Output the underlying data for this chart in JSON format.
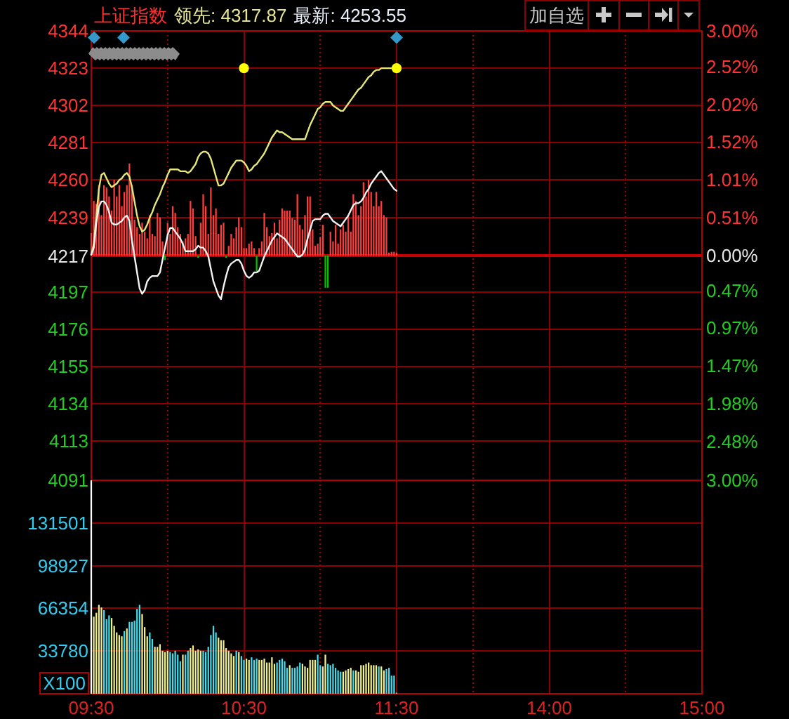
{
  "chart_data": [
    {
      "type": "line",
      "title": "上证指数",
      "annotations": [
        "领先: 4317.87",
        "最新: 4253.55",
        "加自选"
      ],
      "categories": [
        null,
        null,
        null,
        null,
        null,
        null,
        null,
        null,
        null,
        null,
        null,
        null,
        null,
        null,
        null,
        null,
        null,
        null,
        null,
        null,
        null,
        null,
        null,
        null,
        null,
        null,
        null,
        null,
        null,
        null,
        null,
        null,
        null,
        null,
        null,
        null,
        null,
        null,
        null,
        null,
        null,
        null,
        null,
        null,
        null,
        null,
        null,
        null,
        null,
        null,
        null,
        null,
        null,
        null,
        null,
        null,
        null,
        null,
        null,
        null,
        null,
        null,
        null,
        null,
        null,
        null,
        null,
        null,
        null,
        null,
        null,
        null,
        null,
        null,
        null,
        null,
        null,
        null,
        null,
        null,
        null,
        null,
        null,
        null,
        null,
        null,
        null,
        null,
        null,
        null,
        null,
        null,
        null,
        null,
        null,
        null,
        null,
        null,
        null,
        null,
        null,
        null,
        null,
        null,
        null,
        null,
        null,
        null,
        null,
        null,
        null,
        null,
        null,
        null,
        null,
        null,
        null,
        null,
        null,
        null,
        null,
        null,
        null,
        null,
        null,
        null,
        null,
        null,
        null,
        null,
        null,
        null,
        null,
        null,
        null,
        null,
        null,
        null,
        null,
        null,
        null,
        null,
        null,
        null,
        null,
        null,
        null,
        null,
        null,
        null,
        null,
        null,
        null,
        null,
        null,
        null,
        null,
        null,
        null,
        null,
        null,
        null,
        null,
        null,
        null,
        null,
        null,
        null,
        null,
        null,
        null,
        null,
        null,
        null,
        null,
        null,
        null,
        null,
        null,
        null,
        null,
        null,
        null,
        null,
        null,
        null,
        null,
        null,
        null,
        null,
        null,
        null,
        null,
        null,
        null,
        null,
        null,
        null,
        null,
        null,
        null,
        null,
        null,
        null,
        null,
        null,
        null,
        null,
        null,
        null,
        null,
        null,
        null,
        null,
        null,
        null,
        null,
        null,
        null,
        null,
        null,
        null,
        null,
        null,
        null,
        null,
        null,
        null,
        null,
        null,
        null,
        null,
        null,
        null,
        null,
        null,
        null,
        null,
        null,
        null,
        null
      ],
      "ylim": [
        4091,
        4344
      ],
      "yticks": [
        4344,
        4323,
        4302,
        4281,
        4260,
        4239,
        4217,
        4197,
        4176,
        4155,
        4134,
        4113,
        4091
      ],
      "y2lim": [
        -3,
        3
      ],
      "y2ticks": [
        {
          "value": 3,
          "label": "3.00%"
        },
        {
          "value": 2.52,
          "label": "2.52%"
        },
        {
          "value": 2.02,
          "label": "2.02%"
        },
        {
          "value": 1.52,
          "label": "1.52%"
        },
        {
          "value": 1.01,
          "label": "1.01%"
        },
        {
          "value": 0.51,
          "label": "0.51%"
        },
        {
          "value": 0,
          "label": "0.00%"
        },
        {
          "value": -0.47,
          "label": "0.47%"
        },
        {
          "value": -0.97,
          "label": "0.97%"
        },
        {
          "value": -1.47,
          "label": "1.47%"
        },
        {
          "value": -1.98,
          "label": "1.98%"
        },
        {
          "value": -2.48,
          "label": "2.48%"
        },
        {
          "value": -3,
          "label": "3.00%"
        }
      ],
      "tick_labels": "y",
      "grid": true,
      "ref_lines": [
        {
          "axis": "y2",
          "value": 0,
          "color": "#c80000"
        }
      ],
      "series": [
        {
          "type": "bar",
          "axis": "y2",
          "values": [
            0.3,
            0.73,
            0.69,
            0.94,
            0.54,
            0.94,
            0.91,
            0.79,
            0.6,
            1.01,
            0.79,
            0.94,
            0.66,
            0.85,
            0.94,
            1.23,
            0.94,
            0.48,
            0.38,
            0.29,
            0.44,
            0.32,
            0.23,
            0.54,
            0.29,
            0.26,
            0.57,
            0.51,
            0.19,
            -0.06,
            0.44,
            0.29,
            0.66,
            0.57,
            0.38,
            0.29,
            0.19,
            0.23,
            0.29,
            0.73,
            0.63,
            0.26,
            -0.03,
            0.44,
            0.82,
            0.66,
            0.29,
            0.91,
            0.54,
            0.63,
            0.29,
            0.41,
            0.44,
            -0.03,
            0.13,
            0.29,
            0.23,
            0.38,
            0.51,
            0.38,
            0.1,
            0.1,
            0.16,
            0.19,
            0.1,
            -0.21,
            0.1,
            0.19,
            0.57,
            0.38,
            0.26,
            0.3,
            0.44,
            0.23,
            0.48,
            0.63,
            0.6,
            0.6,
            0.6,
            0.5,
            0.48,
            0.82,
            0.41,
            0.35,
            0.54,
            0.79,
            0.79,
            0.35,
            0.13,
            0.16,
            0.25,
            0.41,
            -0.43,
            -0.43,
            0.32,
            0.19,
            0.41,
            0.16,
            0.35,
            0.41,
            0.32,
            0.54,
            0.32,
            0.82,
            0.73,
            0.54,
            0.66,
            0.98,
            0.79,
            1.01,
            0.85,
            0.66,
            0.85,
            0.66,
            0.73,
            0.54,
            0.51,
            0.04,
            0.05,
            0.05,
            0.04,
            null,
            null,
            null,
            null,
            null,
            null,
            null,
            null,
            null,
            null,
            null,
            null,
            null,
            null,
            null,
            null,
            null,
            null,
            null,
            null,
            null,
            null,
            null,
            null,
            null,
            null,
            null,
            null,
            null,
            null,
            null,
            null,
            null,
            null,
            null,
            null,
            null,
            null,
            null,
            null,
            null,
            null,
            null,
            null,
            null,
            null,
            null,
            null,
            null,
            null,
            null,
            null,
            null,
            null,
            null,
            null,
            null,
            null,
            null,
            null,
            null,
            null,
            null,
            null,
            null,
            null,
            null,
            null,
            null,
            null,
            null,
            null,
            null,
            null,
            null,
            null,
            null,
            null,
            null,
            null,
            null,
            null,
            null,
            null,
            null,
            null,
            null,
            null,
            null,
            null,
            null,
            null,
            null,
            null,
            null,
            null,
            null,
            null,
            null,
            null,
            null,
            null,
            null,
            null,
            null,
            null,
            null,
            null,
            null,
            null,
            null,
            null,
            null,
            null,
            null,
            null,
            null,
            null,
            null,
            null
          ],
          "colors": [
            "#ff3c3c",
            "#ff3c3c",
            "#ff3c3c",
            "#ff3c3c",
            "#ff3c3c",
            "#ff3c3c",
            "#ff3c3c",
            "#ff3c3c",
            "#ff3c3c",
            "#ff3c3c",
            "#ff3c3c",
            "#ff3c3c",
            "#ff3c3c",
            "#ff3c3c",
            "#ff3c3c",
            "#ff3c3c",
            "#ff3c3c",
            "#ff3c3c",
            "#ff3c3c",
            "#ff3c3c",
            "#ff3c3c",
            "#ff3c3c",
            "#ff3c3c",
            "#ff3c3c",
            "#ff3c3c",
            "#ff3c3c",
            "#ff3c3c",
            "#ff3c3c",
            "#ff3c3c",
            "#00c000",
            "#ff3c3c",
            "#ff3c3c",
            "#ff3c3c",
            "#ff3c3c",
            "#ff3c3c",
            "#ff3c3c",
            "#ff3c3c",
            "#ff3c3c",
            "#ff3c3c",
            "#ff3c3c",
            "#ff3c3c",
            "#ff3c3c",
            "#00c000",
            "#ff3c3c",
            "#ff3c3c",
            "#ff3c3c",
            "#ff3c3c",
            "#ff3c3c",
            "#ff3c3c",
            "#ff3c3c",
            "#ff3c3c",
            "#ff3c3c",
            "#ff3c3c",
            "#00c000",
            "#ff3c3c",
            "#ff3c3c",
            "#ff3c3c",
            "#ff3c3c",
            "#ff3c3c",
            "#ff3c3c",
            "#ff3c3c",
            "#ff3c3c",
            "#ff3c3c",
            "#ff3c3c",
            "#ff3c3c",
            "#00c000",
            "#ff3c3c",
            "#ff3c3c",
            "#ff3c3c",
            "#ff3c3c",
            "#ff3c3c",
            "#ff3c3c",
            "#ff3c3c",
            "#ff3c3c",
            "#ff3c3c",
            "#ff3c3c",
            "#ff3c3c",
            "#ff3c3c",
            "#ff3c3c",
            "#ff3c3c",
            "#ff3c3c",
            "#ff3c3c",
            "#ff3c3c",
            "#ff3c3c",
            "#ff3c3c",
            "#ff3c3c",
            "#ff3c3c",
            "#ff3c3c",
            "#ff3c3c",
            "#ff3c3c",
            "#ff3c3c",
            "#ff3c3c",
            "#00c000",
            "#00c000",
            "#ff3c3c",
            "#ff3c3c",
            "#ff3c3c",
            "#ff3c3c",
            "#ff3c3c",
            "#ff3c3c",
            "#ff3c3c",
            "#ff3c3c",
            "#ff3c3c",
            "#ff3c3c",
            "#ff3c3c",
            "#ff3c3c",
            "#ff3c3c",
            "#ff3c3c",
            "#ff3c3c",
            "#ff3c3c",
            "#ff3c3c",
            "#ff3c3c",
            "#ff3c3c",
            "#ff3c3c",
            "#ff3c3c",
            "#ff3c3c",
            "#ff3c3c",
            "#ff3c3c",
            "#ff3c3c",
            "#ff3c3c",
            "#ff3c3c",
            null,
            null,
            null,
            null,
            null,
            null,
            null,
            null,
            null,
            null,
            null,
            null,
            null,
            null,
            null,
            null,
            null,
            null,
            null,
            null,
            null,
            null,
            null,
            null,
            null,
            null,
            null,
            null,
            null,
            null,
            null,
            null,
            null,
            null,
            null,
            null,
            null,
            null,
            null,
            null,
            null,
            null,
            null,
            null,
            null,
            null,
            null,
            null,
            null,
            null,
            null,
            null,
            null,
            null,
            null,
            null,
            null,
            null,
            null,
            null,
            null,
            null,
            null,
            null,
            null,
            null,
            null,
            null,
            null,
            null,
            null,
            null,
            null,
            null,
            null,
            null,
            null,
            null,
            null,
            null,
            null,
            null,
            null,
            null,
            null,
            null,
            null,
            null,
            null,
            null,
            null,
            null,
            null,
            null,
            null,
            null,
            null,
            null,
            null,
            null,
            null,
            null,
            null,
            null,
            null,
            null,
            null,
            null,
            null,
            null,
            null,
            null,
            null,
            null,
            null,
            null,
            null,
            null,
            null,
            null
          ]
        },
        {
          "color": "#e6e67a",
          "values": [
            4218,
            4224,
            4240,
            4255,
            4263,
            4264,
            4261,
            4258,
            4256,
            4257,
            4258,
            4260,
            4261,
            4263,
            4264,
            4262,
            4256,
            4248,
            4240,
            4234,
            4231,
            4232,
            4235,
            4239,
            4242,
            4246,
            4249,
            4252,
            4256,
            4259,
            4263,
            4266,
            4266,
            4266,
            4266,
            4265,
            4265,
            4265,
            4264,
            4265,
            4267,
            4269,
            4273,
            4275,
            4276,
            4276,
            4275,
            4272,
            4267,
            4262,
            4257,
            4257,
            4258,
            4261,
            4264,
            4267,
            4269,
            4271,
            4271,
            4271,
            4270,
            4268,
            4265,
            4266,
            4268,
            4269,
            4271,
            4273,
            4275,
            4278,
            4281,
            4284,
            4286,
            4288,
            4287,
            4287,
            4286,
            4285,
            4284,
            4283,
            4283,
            4283,
            4283,
            4283,
            4283,
            4287,
            4291,
            4294,
            4297,
            4300,
            4301,
            4303,
            4304,
            4304,
            4304,
            4302,
            4301,
            4300,
            4299,
            4299,
            4301,
            4303,
            4305,
            4307,
            4309,
            4311,
            4312,
            4314,
            4316,
            4318,
            4319,
            4321,
            4322,
            4322,
            4323,
            4323,
            4323,
            4323,
            4323,
            4323,
            4323,
            null,
            null,
            null,
            null,
            null,
            null,
            null,
            null,
            null,
            null,
            null,
            null,
            null,
            null,
            null,
            null,
            null,
            null,
            null,
            null,
            null,
            null,
            null,
            null,
            null,
            null,
            null,
            null,
            null,
            null,
            null,
            null,
            null,
            null,
            null,
            null,
            null,
            null,
            null,
            null,
            null,
            null,
            null,
            null,
            null,
            null,
            null,
            null,
            null,
            null,
            null,
            null,
            null,
            null,
            null,
            null,
            null,
            null,
            null,
            null,
            null,
            null,
            null,
            null,
            null,
            null,
            null,
            null,
            null,
            null,
            null,
            null,
            null,
            null,
            null,
            null,
            null,
            null,
            null,
            null,
            null,
            null,
            null,
            null,
            null,
            null,
            null,
            null,
            null,
            null,
            null,
            null,
            null,
            null,
            null,
            null,
            null,
            null,
            null,
            null,
            null,
            null,
            null,
            null,
            null,
            null,
            null,
            null,
            null,
            null,
            null,
            null,
            null,
            null,
            null,
            null,
            null,
            null,
            null,
            null
          ]
        },
        {
          "color": "#f2f2f2",
          "values": [
            4218,
            4222,
            4236,
            4245,
            4248,
            4248,
            4246,
            4242,
            4236,
            4235,
            4235,
            4236,
            4237,
            4239,
            4240,
            4237,
            4226,
            4217,
            4208,
            4199,
            4196,
            4198,
            4203,
            4205,
            4206,
            4206,
            4206,
            4208,
            4215,
            4222,
            4229,
            4233,
            4233,
            4231,
            4229,
            4227,
            4224,
            4220,
            4220,
            4220,
            4220,
            4221,
            4223,
            4222,
            4222,
            4220,
            4217,
            4210,
            4203,
            4199,
            4195,
            4193,
            4200,
            4206,
            4211,
            4213,
            4214,
            4215,
            4215,
            4213,
            4209,
            4206,
            4205,
            4206,
            4208,
            4208,
            4209,
            4213,
            4217,
            4220,
            4223,
            4226,
            4228,
            4230,
            4229,
            4228,
            4227,
            4225,
            4223,
            4221,
            4219,
            4217,
            4217,
            4218,
            4221,
            4227,
            4232,
            4237,
            4238,
            4238,
            4238,
            4240,
            4241,
            4241,
            4239,
            4237,
            4236,
            4235,
            4234,
            4236,
            4238,
            4240,
            4243,
            4246,
            4247,
            4247,
            4248,
            4250,
            4253,
            4255,
            4258,
            4260,
            4262,
            4264,
            4265,
            4263,
            4261,
            4259,
            4257,
            4255,
            4254,
            null,
            null,
            null,
            null,
            null,
            null,
            null,
            null,
            null,
            null,
            null,
            null,
            null,
            null,
            null,
            null,
            null,
            null,
            null,
            null,
            null,
            null,
            null,
            null,
            null,
            null,
            null,
            null,
            null,
            null,
            null,
            null,
            null,
            null,
            null,
            null,
            null,
            null,
            null,
            null,
            null,
            null,
            null,
            null,
            null,
            null,
            null,
            null,
            null,
            null,
            null,
            null,
            null,
            null,
            null,
            null,
            null,
            null,
            null,
            null,
            null,
            null,
            null,
            null,
            null,
            null,
            null,
            null,
            null,
            null,
            null,
            null,
            null,
            null,
            null,
            null,
            null,
            null,
            null,
            null,
            null,
            null,
            null,
            null,
            null,
            null,
            null,
            null,
            null,
            null,
            null,
            null,
            null,
            null,
            null,
            null,
            null,
            null,
            null,
            null,
            null,
            null,
            null,
            null,
            null,
            null,
            null,
            null,
            null,
            null,
            null,
            null,
            null,
            null,
            null,
            null,
            null,
            null,
            null,
            null
          ]
        },
        {
          "type": "scatter",
          "color": "#ffff00",
          "marker": "circle",
          "values": [
            null,
            null,
            null,
            null,
            null,
            null,
            null,
            null,
            null,
            null,
            null,
            null,
            null,
            null,
            null,
            null,
            null,
            null,
            null,
            null,
            null,
            null,
            null,
            null,
            null,
            null,
            null,
            null,
            null,
            null,
            null,
            null,
            null,
            null,
            null,
            null,
            null,
            null,
            null,
            null,
            null,
            null,
            null,
            null,
            null,
            null,
            null,
            null,
            null,
            null,
            null,
            null,
            null,
            null,
            null,
            null,
            null,
            null,
            null,
            null,
            4323,
            null,
            null,
            null,
            null,
            null,
            null,
            null,
            null,
            null,
            null,
            null,
            null,
            null,
            null,
            null,
            null,
            null,
            null,
            null,
            null,
            null,
            null,
            null,
            null,
            null,
            null,
            null,
            null,
            null,
            null,
            null,
            null,
            null,
            null,
            null,
            null,
            null,
            null,
            null,
            null,
            null,
            null,
            null,
            null,
            null,
            null,
            null,
            null,
            null,
            null,
            null,
            null,
            null,
            null,
            null,
            null,
            null,
            null,
            null,
            4323,
            null,
            null,
            null,
            null,
            null,
            null,
            null,
            null,
            null,
            null,
            null,
            null,
            null,
            null,
            null,
            null,
            null,
            null,
            null,
            null,
            null,
            null,
            null,
            null,
            null,
            null,
            null,
            null,
            null,
            null,
            null,
            null,
            null,
            null,
            null,
            null,
            null,
            null,
            null,
            null,
            null,
            null,
            null,
            null,
            null,
            null,
            null,
            null,
            null,
            null,
            null,
            null,
            null,
            null,
            null,
            null,
            null,
            null,
            null,
            null,
            null,
            null,
            null,
            null,
            null,
            null,
            null,
            null,
            null,
            null,
            null,
            null,
            null,
            null,
            null,
            null,
            null,
            null,
            null,
            null,
            null,
            null,
            null,
            null,
            null,
            null,
            null,
            null,
            null,
            null,
            null,
            null,
            null,
            null,
            null,
            null,
            null,
            null,
            null,
            null,
            null,
            null,
            null,
            null,
            null,
            null,
            null,
            null,
            null,
            null,
            null,
            null,
            null,
            null,
            null,
            null,
            null,
            null,
            null,
            null
          ]
        }
      ]
    },
    {
      "type": "bar",
      "ylabel": "X100",
      "categories": [
        "09:30",
        null,
        null,
        null,
        null,
        null,
        null,
        null,
        null,
        null,
        null,
        null,
        null,
        null,
        null,
        null,
        null,
        null,
        null,
        null,
        null,
        null,
        null,
        null,
        null,
        null,
        null,
        null,
        null,
        null,
        null,
        null,
        null,
        null,
        null,
        null,
        null,
        null,
        null,
        null,
        null,
        null,
        null,
        null,
        null,
        null,
        null,
        null,
        null,
        null,
        null,
        null,
        null,
        null,
        null,
        null,
        null,
        null,
        null,
        null,
        "10:30",
        null,
        null,
        null,
        null,
        null,
        null,
        null,
        null,
        null,
        null,
        null,
        null,
        null,
        null,
        null,
        null,
        null,
        null,
        null,
        null,
        null,
        null,
        null,
        null,
        null,
        null,
        null,
        null,
        null,
        null,
        null,
        null,
        null,
        null,
        null,
        null,
        null,
        null,
        null,
        null,
        null,
        null,
        null,
        null,
        null,
        null,
        null,
        null,
        null,
        null,
        null,
        null,
        null,
        null,
        null,
        null,
        null,
        null,
        null,
        "11:30",
        null,
        null,
        null,
        null,
        null,
        null,
        null,
        null,
        null,
        null,
        null,
        null,
        null,
        null,
        null,
        null,
        null,
        null,
        null,
        null,
        null,
        null,
        null,
        null,
        null,
        null,
        null,
        null,
        null,
        null,
        null,
        null,
        null,
        null,
        null,
        null,
        null,
        null,
        null,
        null,
        null,
        null,
        null,
        null,
        null,
        null,
        null,
        null,
        null,
        null,
        null,
        null,
        null,
        null,
        null,
        null,
        null,
        null,
        null,
        "14:00",
        null,
        null,
        null,
        null,
        null,
        null,
        null,
        null,
        null,
        null,
        null,
        null,
        null,
        null,
        null,
        null,
        null,
        null,
        null,
        null,
        null,
        null,
        null,
        null,
        null,
        null,
        null,
        null,
        null,
        null,
        null,
        null,
        null,
        null,
        null,
        null,
        null,
        null,
        null,
        null,
        null,
        null,
        null,
        null,
        null,
        null,
        null,
        null,
        null,
        null,
        null,
        null,
        null,
        null,
        null,
        null,
        null,
        null,
        null,
        "15:00"
      ],
      "values": [
        164000,
        60000,
        63000,
        69000,
        67000,
        65000,
        58000,
        61000,
        59000,
        53000,
        48000,
        46000,
        45000,
        49000,
        51000,
        56000,
        56000,
        57000,
        66000,
        69000,
        62000,
        52000,
        45000,
        48000,
        43000,
        37000,
        37000,
        39000,
        34000,
        33000,
        34000,
        33000,
        32000,
        34000,
        31000,
        26000,
        31000,
        31000,
        34000,
        36000,
        38000,
        34000,
        35000,
        34000,
        34000,
        33000,
        37000,
        46000,
        53000,
        48000,
        44000,
        42000,
        42000,
        36000,
        34000,
        32000,
        30000,
        34000,
        33000,
        30000,
        27000,
        28000,
        27000,
        29000,
        27000,
        28000,
        27000,
        27000,
        28000,
        25000,
        25000,
        29000,
        24000,
        25000,
        27000,
        28000,
        26000,
        21000,
        23000,
        21000,
        21000,
        22000,
        25000,
        24000,
        22000,
        21000,
        27000,
        27000,
        27000,
        31000,
        23000,
        22000,
        31000,
        24000,
        23000,
        24000,
        21000,
        19000,
        18000,
        18000,
        19000,
        20000,
        21000,
        19000,
        19000,
        18000,
        23000,
        23000,
        24000,
        25000,
        23000,
        23000,
        23000,
        22000,
        22000,
        19000,
        20000,
        21000,
        15000,
        15000,
        2000,
        null,
        null,
        null,
        null,
        null,
        null,
        null,
        null,
        null,
        null,
        null,
        null,
        null,
        null,
        null,
        null,
        null,
        null,
        null,
        null,
        null,
        null,
        null,
        null,
        null,
        null,
        null,
        null,
        null,
        null,
        null,
        null,
        null,
        null,
        null,
        null,
        null,
        null,
        null,
        null,
        null,
        null,
        null,
        null,
        null,
        null,
        null,
        null,
        null,
        null,
        null,
        null,
        null,
        null,
        null,
        null,
        null,
        null,
        null,
        null,
        null,
        null,
        null,
        null,
        null,
        null,
        null,
        null,
        null,
        null,
        null,
        null,
        null,
        null,
        null,
        null,
        null,
        null,
        null,
        null,
        null,
        null,
        null,
        null,
        null,
        null,
        null,
        null,
        null,
        null,
        null,
        null,
        null,
        null,
        null,
        null,
        null,
        null,
        null,
        null,
        null,
        null,
        null,
        null,
        null,
        null,
        null,
        null,
        null,
        null,
        null,
        null,
        null,
        null,
        null,
        null,
        null,
        null,
        null,
        null
      ],
      "colors": [
        "#ffffff",
        "#f0f08c",
        "#f0f08c",
        "#f0f08c",
        "#f0f08c",
        "#44dcea",
        "#44dcea",
        "#44dcea",
        "#f0f08c",
        "#f0f08c",
        "#f0f08c",
        "#f0f08c",
        "#f0f08c",
        "#44dcea",
        "#f0f08c",
        "#44dcea",
        "#44dcea",
        "#44dcea",
        "#44dcea",
        "#44dcea",
        "#f0f08c",
        "#f0f08c",
        "#f0f08c",
        "#44dcea",
        "#44dcea",
        "#f0f08c",
        "#f0f08c",
        "#f0f08c",
        "#f0f08c",
        "#f0f08c",
        "#f0f08c",
        "#44dcea",
        "#44dcea",
        "#44dcea",
        "#44dcea",
        "#44dcea",
        "#f0f08c",
        "#44dcea",
        "#44dcea",
        "#f0f08c",
        "#f0f08c",
        "#f0f08c",
        "#f0f08c",
        "#f0f08c",
        "#44dcea",
        "#44dcea",
        "#44dcea",
        "#44dcea",
        "#44dcea",
        "#44dcea",
        "#f0f08c",
        "#f0f08c",
        "#f0f08c",
        "#f0f08c",
        "#f0f08c",
        "#f0f08c",
        "#f0f08c",
        "#44dcea",
        "#f0f08c",
        "#44dcea",
        "#44dcea",
        "#f0f08c",
        "#f0f08c",
        "#44dcea",
        "#44dcea",
        "#44dcea",
        "#f0f08c",
        "#f0f08c",
        "#f0f08c",
        "#f0f08c",
        "#f0f08c",
        "#f0f08c",
        "#f0f08c",
        "#44dcea",
        "#44dcea",
        "#44dcea",
        "#44dcea",
        "#44dcea",
        "#f0f08c",
        "#44dcea",
        "#44dcea",
        "#44dcea",
        "#44dcea",
        "#f0f08c",
        "#f0f08c",
        "#f0f08c",
        "#f0f08c",
        "#f0f08c",
        "#f0f08c",
        "#44dcea",
        "#44dcea",
        "#f0f08c",
        "#f0f08c",
        "#44dcea",
        "#44dcea",
        "#44dcea",
        "#44dcea",
        "#44dcea",
        "#44dcea",
        "#f0f08c",
        "#f0f08c",
        "#f0f08c",
        "#f0f08c",
        "#44dcea",
        "#f0f08c",
        "#f0f08c",
        "#f0f08c",
        "#f0f08c",
        "#f0f08c",
        "#f0f08c",
        "#f0f08c",
        "#f0f08c",
        "#f0f08c",
        "#44dcea",
        "#f0f08c",
        "#f0f08c",
        "#44dcea",
        "#44dcea",
        "#44dcea",
        "#44dcea",
        "#44dcea",
        null,
        null,
        null,
        null,
        null,
        null,
        null,
        null,
        null,
        null,
        null,
        null,
        null,
        null,
        null,
        null,
        null,
        null,
        null,
        null,
        null,
        null,
        null,
        null,
        null,
        null,
        null,
        null,
        null,
        null,
        null,
        null,
        null,
        null,
        null,
        null,
        null,
        null,
        null,
        null,
        null,
        null,
        null,
        null,
        null,
        null,
        null,
        null,
        null,
        null,
        null,
        null,
        null,
        null,
        null,
        null,
        null,
        null,
        null,
        null,
        null,
        null,
        null,
        null,
        null,
        null,
        null,
        null,
        null,
        null,
        null,
        null,
        null,
        null,
        null,
        null,
        null,
        null,
        null,
        null,
        null,
        null,
        null,
        null,
        null,
        null,
        null,
        null,
        null,
        null,
        null,
        null,
        null,
        null,
        null,
        null,
        null,
        null,
        null,
        null,
        null,
        null,
        null,
        null,
        null,
        null,
        null,
        null,
        null,
        null,
        null,
        null,
        null,
        null,
        null,
        null,
        null,
        null,
        null,
        null
      ],
      "ylim": [
        1206,
        164076
      ],
      "yticks": [
        33780,
        66354,
        98927,
        131501
      ],
      "grid": true
    }
  ]
}
